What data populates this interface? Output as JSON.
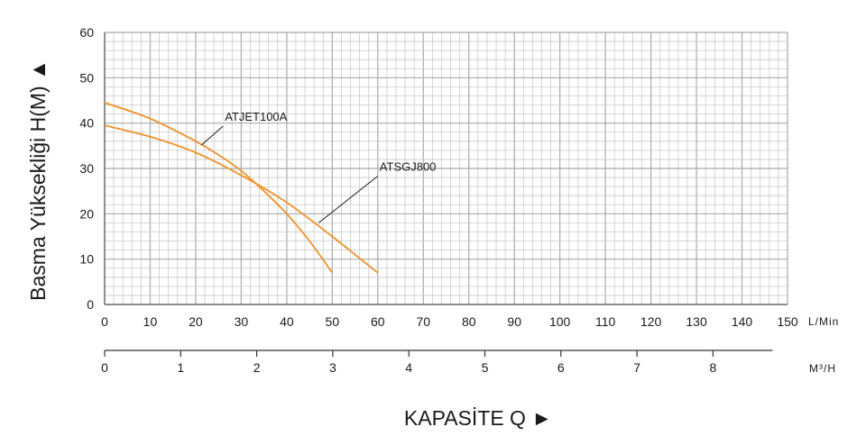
{
  "chart_data": {
    "type": "line",
    "title": "",
    "ylabel": "Basma Yüksekliği H(M) ▲",
    "xlabel": "KAPASİTE Q ►",
    "grid": true,
    "x_unit": "L/Min",
    "x2_unit": "M³/H",
    "xlim": [
      0,
      150
    ],
    "ylim": [
      0,
      60
    ],
    "x_ticks": [
      0,
      10,
      20,
      30,
      40,
      50,
      60,
      70,
      80,
      90,
      100,
      110,
      120,
      130,
      140,
      150
    ],
    "y_ticks": [
      0,
      10,
      20,
      30,
      40,
      50,
      60
    ],
    "x2_ticks": [
      0,
      1,
      2,
      3,
      4,
      5,
      6,
      7,
      8
    ],
    "series": [
      {
        "name": "ATJET100A",
        "color": "#f0922b",
        "x": [
          0,
          10,
          20,
          25,
          30,
          35,
          40,
          45,
          50
        ],
        "y": [
          44.5,
          41,
          36,
          33,
          29.5,
          25,
          20,
          14,
          7
        ]
      },
      {
        "name": "ATSGJ800",
        "color": "#f0922b",
        "x": [
          0,
          10,
          20,
          30,
          40,
          50,
          55,
          60
        ],
        "y": [
          39.5,
          37,
          33.5,
          28.5,
          22.5,
          15,
          11,
          7
        ]
      }
    ],
    "annotations": [
      {
        "text": "ATJET100A",
        "x": 26,
        "y": 40.5,
        "point_x": 21.3,
        "point_y": 35.2
      },
      {
        "text": "ATSGJ800",
        "x": 60,
        "y": 29.5,
        "point_x": 47,
        "point_y": 18
      }
    ]
  }
}
